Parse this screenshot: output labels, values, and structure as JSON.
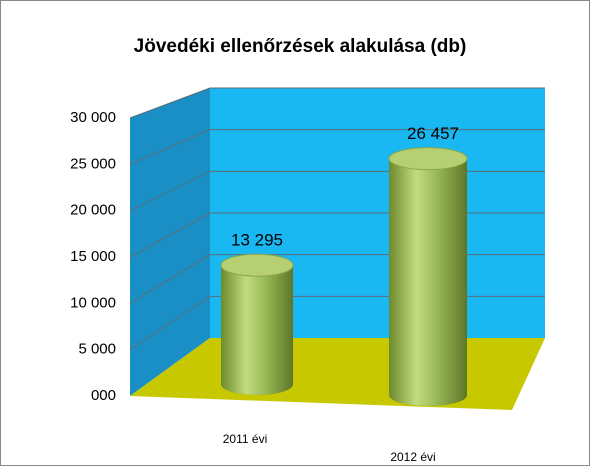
{
  "chart_data": {
    "type": "bar3d",
    "title": "Jövedéki ellenőrzések alakulása (db)",
    "categories": [
      "2011 évi",
      "2012 évi"
    ],
    "values": [
      13295,
      26457
    ],
    "value_labels": [
      "13 295",
      "26 457"
    ],
    "color": "#9bbb59",
    "ylim": [
      0,
      30000
    ],
    "yticks": [
      {
        "value": 0,
        "label": "000"
      },
      {
        "value": 5000,
        "label": "5 000"
      },
      {
        "value": 10000,
        "label": "10 000"
      },
      {
        "value": 15000,
        "label": "15 000"
      },
      {
        "value": 20000,
        "label": "20 000"
      },
      {
        "value": 25000,
        "label": "25 000"
      },
      {
        "value": 30000,
        "label": "30 000"
      }
    ],
    "grid": true
  }
}
